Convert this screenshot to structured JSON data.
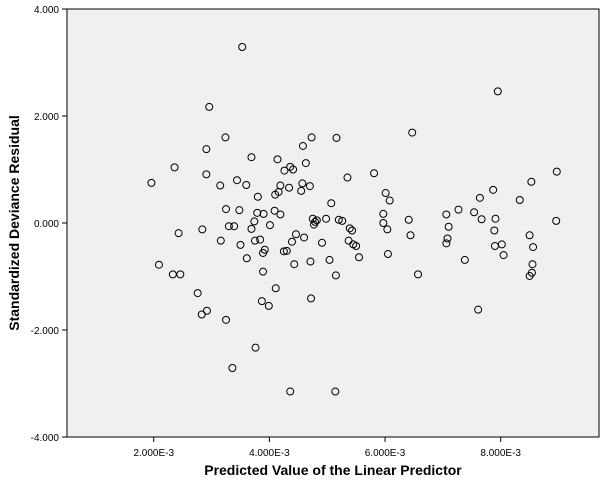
{
  "chart_data": {
    "type": "scatter",
    "xlabel": "Predicted Value of the Linear Predictor",
    "ylabel": "Standardized Deviance Residual",
    "xlim": [
      0.0005,
      0.0097
    ],
    "ylim": [
      -4.0,
      4.0
    ],
    "x_ticks": [
      0.002,
      0.004,
      0.006,
      0.008
    ],
    "x_tick_labels": [
      "2.000E-3",
      "4.000E-3",
      "6.000E-3",
      "8.000E-3"
    ],
    "y_ticks": [
      -4.0,
      -2.0,
      0.0,
      2.0,
      4.0
    ],
    "y_tick_labels": [
      "-4.000",
      "-2.000",
      "0.000",
      "2.000",
      "4.000"
    ],
    "grid": false,
    "points": [
      [
        0.00196,
        0.75
      ],
      [
        0.00209,
        -0.78
      ],
      [
        0.00233,
        -0.96
      ],
      [
        0.00236,
        1.04
      ],
      [
        0.00243,
        -0.19
      ],
      [
        0.00246,
        -0.96
      ],
      [
        0.00276,
        -1.31
      ],
      [
        0.00284,
        -0.12
      ],
      [
        0.00283,
        -1.71
      ],
      [
        0.00292,
        -1.64
      ],
      [
        0.00291,
        1.38
      ],
      [
        0.00291,
        0.91
      ],
      [
        0.00296,
        2.17
      ],
      [
        0.00315,
        0.7
      ],
      [
        0.00316,
        -0.33
      ],
      [
        0.00324,
        1.6
      ],
      [
        0.00325,
        0.26
      ],
      [
        0.00325,
        -1.81
      ],
      [
        0.0033,
        -0.06
      ],
      [
        0.00336,
        -2.71
      ],
      [
        0.00339,
        -0.06
      ],
      [
        0.00344,
        0.8
      ],
      [
        0.00348,
        0.24
      ],
      [
        0.0035,
        -0.41
      ],
      [
        0.00353,
        3.29
      ],
      [
        0.00361,
        -0.66
      ],
      [
        0.00369,
        1.23
      ],
      [
        0.00369,
        -0.11
      ],
      [
        0.00374,
        0.03
      ],
      [
        0.00375,
        -0.33
      ],
      [
        0.00376,
        -2.33
      ],
      [
        0.00379,
        0.19
      ],
      [
        0.0038,
        0.49
      ],
      [
        0.00384,
        -0.31
      ],
      [
        0.00387,
        -1.46
      ],
      [
        0.00389,
        -0.56
      ],
      [
        0.0039,
        0.17
      ],
      [
        0.00392,
        -0.5
      ],
      [
        0.00399,
        -1.55
      ],
      [
        0.00409,
        0.23
      ],
      [
        0.0041,
        0.53
      ],
      [
        0.00414,
        1.19
      ],
      [
        0.00416,
        0.58
      ],
      [
        0.00419,
        0.7
      ],
      [
        0.00419,
        0.16
      ],
      [
        0.00426,
        0.98
      ],
      [
        0.0043,
        -0.52
      ],
      [
        0.00434,
        0.66
      ],
      [
        0.00436,
        1.05
      ],
      [
        0.00439,
        -0.35
      ],
      [
        0.00441,
        1.0
      ],
      [
        0.00443,
        -0.77
      ],
      [
        0.00446,
        -0.21
      ],
      [
        0.00455,
        0.6
      ],
      [
        0.00457,
        0.74
      ],
      [
        0.00458,
        1.44
      ],
      [
        0.0046,
        -0.27
      ],
      [
        0.00463,
        1.12
      ],
      [
        0.0047,
        0.69
      ],
      [
        0.00471,
        -0.72
      ],
      [
        0.00473,
        1.6
      ],
      [
        0.00475,
        0.08
      ],
      [
        0.00477,
        -0.03
      ],
      [
        0.00479,
        0.02
      ],
      [
        0.00482,
        0.05
      ],
      [
        0.00491,
        -0.37
      ],
      [
        0.00498,
        0.08
      ],
      [
        0.00504,
        -0.69
      ],
      [
        0.00507,
        0.37
      ],
      [
        0.00516,
        1.59
      ],
      [
        0.00515,
        -0.98
      ],
      [
        0.00526,
        0.04
      ],
      [
        0.00535,
        0.85
      ],
      [
        0.00537,
        -0.33
      ],
      [
        0.00539,
        -0.1
      ],
      [
        0.00543,
        -0.14
      ],
      [
        0.00545,
        -0.4
      ],
      [
        0.0055,
        -0.43
      ],
      [
        0.00555,
        -0.64
      ],
      [
        0.00581,
        0.93
      ],
      [
        0.00597,
        0.17
      ],
      [
        0.00597,
        0.0
      ],
      [
        0.00601,
        0.56
      ],
      [
        0.00604,
        -0.12
      ],
      [
        0.00605,
        -0.58
      ],
      [
        0.00608,
        0.42
      ],
      [
        0.00641,
        0.06
      ],
      [
        0.00644,
        -0.23
      ],
      [
        0.00647,
        1.69
      ],
      [
        0.00657,
        -0.96
      ],
      [
        0.00706,
        0.16
      ],
      [
        0.00706,
        -0.38
      ],
      [
        0.00708,
        -0.29
      ],
      [
        0.0071,
        -0.07
      ],
      [
        0.00727,
        0.25
      ],
      [
        0.00738,
        -0.69
      ],
      [
        0.00754,
        0.2
      ],
      [
        0.00761,
        -1.62
      ],
      [
        0.00764,
        0.47
      ],
      [
        0.00767,
        0.07
      ],
      [
        0.00787,
        0.62
      ],
      [
        0.00789,
        -0.14
      ],
      [
        0.00791,
        0.08
      ],
      [
        0.0079,
        -0.43
      ],
      [
        0.00795,
        2.46
      ],
      [
        0.00802,
        -0.4
      ],
      [
        0.00805,
        -0.6
      ],
      [
        0.00833,
        0.43
      ],
      [
        0.0085,
        -0.23
      ],
      [
        0.0085,
        -0.99
      ],
      [
        0.00853,
        0.77
      ],
      [
        0.00854,
        -0.93
      ],
      [
        0.00855,
        -0.77
      ],
      [
        0.00856,
        -0.45
      ],
      [
        0.00896,
        0.04
      ],
      [
        0.00897,
        0.96
      ],
      [
        0.00389,
        -0.91
      ],
      [
        0.00411,
        -1.22
      ],
      [
        0.00436,
        -3.15
      ],
      [
        0.00514,
        -3.15
      ],
      [
        0.00472,
        -1.41
      ],
      [
        0.0036,
        0.71
      ],
      [
        0.00425,
        -0.53
      ],
      [
        0.0052,
        0.06
      ],
      [
        0.00401,
        -0.04
      ]
    ]
  }
}
